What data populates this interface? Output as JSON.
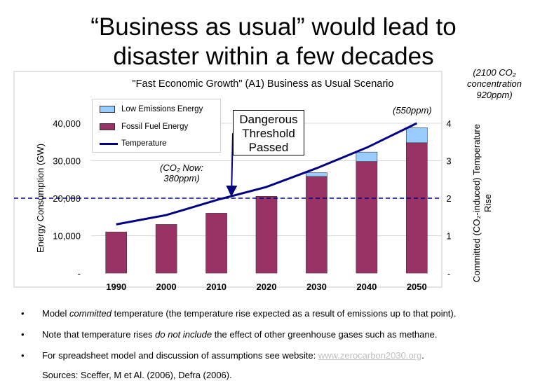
{
  "slide": {
    "title_line1": "“Business as usual” would lead to",
    "title_line2": "disaster within a few decades",
    "note_2100": "(2100 CO₂ concentration 920ppm)"
  },
  "callout": {
    "line1": "Dangerous",
    "line2": "Threshold",
    "line3": "Passed"
  },
  "annotations": {
    "co2_now": "(CO₂ Now: 380ppm)",
    "co2_550": "(550ppm)"
  },
  "chart_data": {
    "type": "bar",
    "title": "\"Fast Economic Growth\" (A1) Business as Usual Scenario",
    "categories": [
      "1990",
      "2000",
      "2010",
      "2020",
      "2030",
      "2040",
      "2050"
    ],
    "series": [
      {
        "name": "Fossil Fuel Energy",
        "color": "#993366",
        "values": [
          11000,
          13000,
          16000,
          20500,
          25800,
          29800,
          34800
        ]
      },
      {
        "name": "Low Emissions Energy",
        "color": "#99ccff",
        "values": [
          0,
          0,
          0,
          0,
          1000,
          2500,
          4000
        ]
      }
    ],
    "line": {
      "name": "Temperature",
      "color": "#000080",
      "x": [
        1990,
        2000,
        2010,
        2020,
        2030,
        2040,
        2050
      ],
      "values": [
        1.3,
        1.55,
        1.95,
        2.3,
        2.8,
        3.35,
        4.0
      ]
    },
    "threshold": 2,
    "ylabel": "Energy Consumption (GW)",
    "y2label": "Committed (CO₂-induced) Temperature Rise",
    "ylim": [
      0,
      40000
    ],
    "y2lim": [
      0,
      4
    ],
    "yticks": [
      "-",
      "10,000",
      "20,000",
      "30,000",
      "40,000"
    ],
    "y2ticks": [
      "-",
      "1",
      "2",
      "3",
      "4"
    ],
    "legend": [
      "Low Emissions Energy",
      "Fossil Fuel Energy",
      "Temperature"
    ],
    "grid": true
  },
  "bullets": {
    "b1_a": "Model ",
    "b1_b": "committed",
    "b1_c": " temperature (the temperature rise expected as a result of emissions up to that point).",
    "b2_a": "Note that temperature rises ",
    "b2_b": "do not include",
    "b2_c": " the effect of other greenhouse gases such as methane.",
    "b3_a": "For spreadsheet model and discussion of assumptions see website: ",
    "b3_link": "www.zerocarbon2030.org",
    "b3_c": ".",
    "sources": "Sources: Sceffer, M et Al. (2006),  Defra (2006).",
    "bullet_char": "•"
  }
}
